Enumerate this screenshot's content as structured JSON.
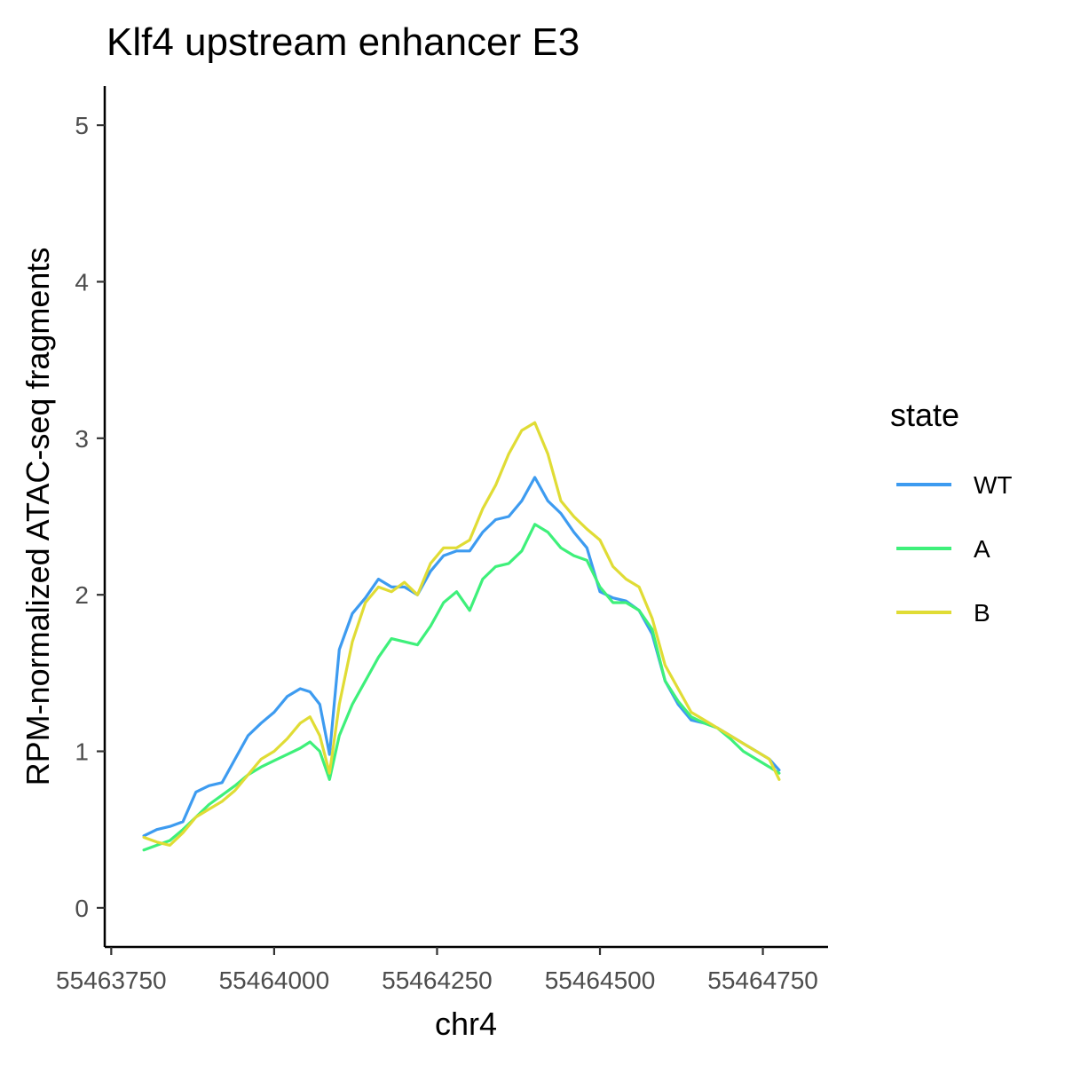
{
  "chart_data": {
    "type": "line",
    "title": "Klf4 upstream enhancer E3",
    "xlabel": "chr4",
    "ylabel": "RPM-normalized ATAC-seq fragments",
    "xlim": [
      55463740,
      55464850
    ],
    "ylim": [
      -0.25,
      5.25
    ],
    "x_ticks": [
      55463750,
      55464000,
      55464250,
      55464500,
      55464750
    ],
    "x_tick_labels": [
      "55463750",
      "55464000",
      "55464250",
      "55464500",
      "55464750"
    ],
    "y_ticks": [
      0,
      1,
      2,
      3,
      4,
      5
    ],
    "y_tick_labels": [
      "0",
      "1",
      "2",
      "3",
      "4",
      "5"
    ],
    "grid": false,
    "legend": {
      "title": "state",
      "position": "right"
    },
    "series": [
      {
        "name": "WT",
        "color": "#3D9BF0",
        "x": [
          55463800,
          55463820,
          55463840,
          55463860,
          55463880,
          55463900,
          55463920,
          55463940,
          55463960,
          55463980,
          55464000,
          55464020,
          55464040,
          55464055,
          55464070,
          55464085,
          55464100,
          55464120,
          55464140,
          55464160,
          55464180,
          55464200,
          55464220,
          55464240,
          55464260,
          55464280,
          55464300,
          55464320,
          55464340,
          55464360,
          55464380,
          55464400,
          55464420,
          55464440,
          55464460,
          55464480,
          55464500,
          55464520,
          55464540,
          55464560,
          55464580,
          55464600,
          55464620,
          55464640,
          55464660,
          55464680,
          55464700,
          55464720,
          55464740,
          55464760,
          55464775
        ],
        "y": [
          0.46,
          0.5,
          0.52,
          0.55,
          0.74,
          0.78,
          0.8,
          0.95,
          1.1,
          1.18,
          1.25,
          1.35,
          1.4,
          1.38,
          1.3,
          0.98,
          1.65,
          1.88,
          1.98,
          2.1,
          2.05,
          2.05,
          2.0,
          2.15,
          2.25,
          2.28,
          2.28,
          2.4,
          2.48,
          2.5,
          2.6,
          2.75,
          2.6,
          2.52,
          2.4,
          2.3,
          2.02,
          1.98,
          1.96,
          1.9,
          1.75,
          1.45,
          1.3,
          1.2,
          1.18,
          1.15,
          1.1,
          1.05,
          1.0,
          0.95,
          0.88
        ]
      },
      {
        "name": "A",
        "color": "#3EF07A",
        "x": [
          55463800,
          55463820,
          55463840,
          55463860,
          55463880,
          55463900,
          55463920,
          55463940,
          55463960,
          55463980,
          55464000,
          55464020,
          55464040,
          55464055,
          55464070,
          55464085,
          55464100,
          55464120,
          55464140,
          55464160,
          55464180,
          55464200,
          55464220,
          55464240,
          55464260,
          55464280,
          55464300,
          55464320,
          55464340,
          55464360,
          55464380,
          55464400,
          55464420,
          55464440,
          55464460,
          55464480,
          55464500,
          55464520,
          55464540,
          55464560,
          55464580,
          55464600,
          55464620,
          55464640,
          55464660,
          55464680,
          55464700,
          55464720,
          55464740,
          55464760,
          55464775
        ],
        "y": [
          0.37,
          0.4,
          0.43,
          0.5,
          0.58,
          0.66,
          0.72,
          0.78,
          0.85,
          0.9,
          0.94,
          0.98,
          1.02,
          1.06,
          1.0,
          0.82,
          1.1,
          1.3,
          1.45,
          1.6,
          1.72,
          1.7,
          1.68,
          1.8,
          1.95,
          2.02,
          1.9,
          2.1,
          2.18,
          2.2,
          2.28,
          2.45,
          2.4,
          2.3,
          2.25,
          2.22,
          2.05,
          1.95,
          1.95,
          1.9,
          1.78,
          1.45,
          1.32,
          1.22,
          1.18,
          1.15,
          1.08,
          1.0,
          0.95,
          0.9,
          0.86
        ]
      },
      {
        "name": "B",
        "color": "#E0DC35",
        "x": [
          55463800,
          55463820,
          55463840,
          55463860,
          55463880,
          55463900,
          55463920,
          55463940,
          55463960,
          55463980,
          55464000,
          55464020,
          55464040,
          55464055,
          55464070,
          55464085,
          55464100,
          55464120,
          55464140,
          55464160,
          55464180,
          55464200,
          55464220,
          55464240,
          55464260,
          55464280,
          55464300,
          55464320,
          55464340,
          55464360,
          55464380,
          55464400,
          55464420,
          55464440,
          55464460,
          55464480,
          55464500,
          55464520,
          55464540,
          55464560,
          55464580,
          55464600,
          55464620,
          55464640,
          55464660,
          55464680,
          55464700,
          55464720,
          55464740,
          55464760,
          55464775
        ],
        "y": [
          0.45,
          0.42,
          0.4,
          0.48,
          0.58,
          0.63,
          0.68,
          0.75,
          0.85,
          0.95,
          1.0,
          1.08,
          1.18,
          1.22,
          1.1,
          0.86,
          1.3,
          1.7,
          1.95,
          2.05,
          2.02,
          2.08,
          2.0,
          2.2,
          2.3,
          2.3,
          2.35,
          2.55,
          2.7,
          2.9,
          3.05,
          3.1,
          2.9,
          2.6,
          2.5,
          2.42,
          2.35,
          2.18,
          2.1,
          2.05,
          1.85,
          1.55,
          1.4,
          1.25,
          1.2,
          1.15,
          1.1,
          1.05,
          1.0,
          0.95,
          0.82
        ]
      }
    ]
  }
}
